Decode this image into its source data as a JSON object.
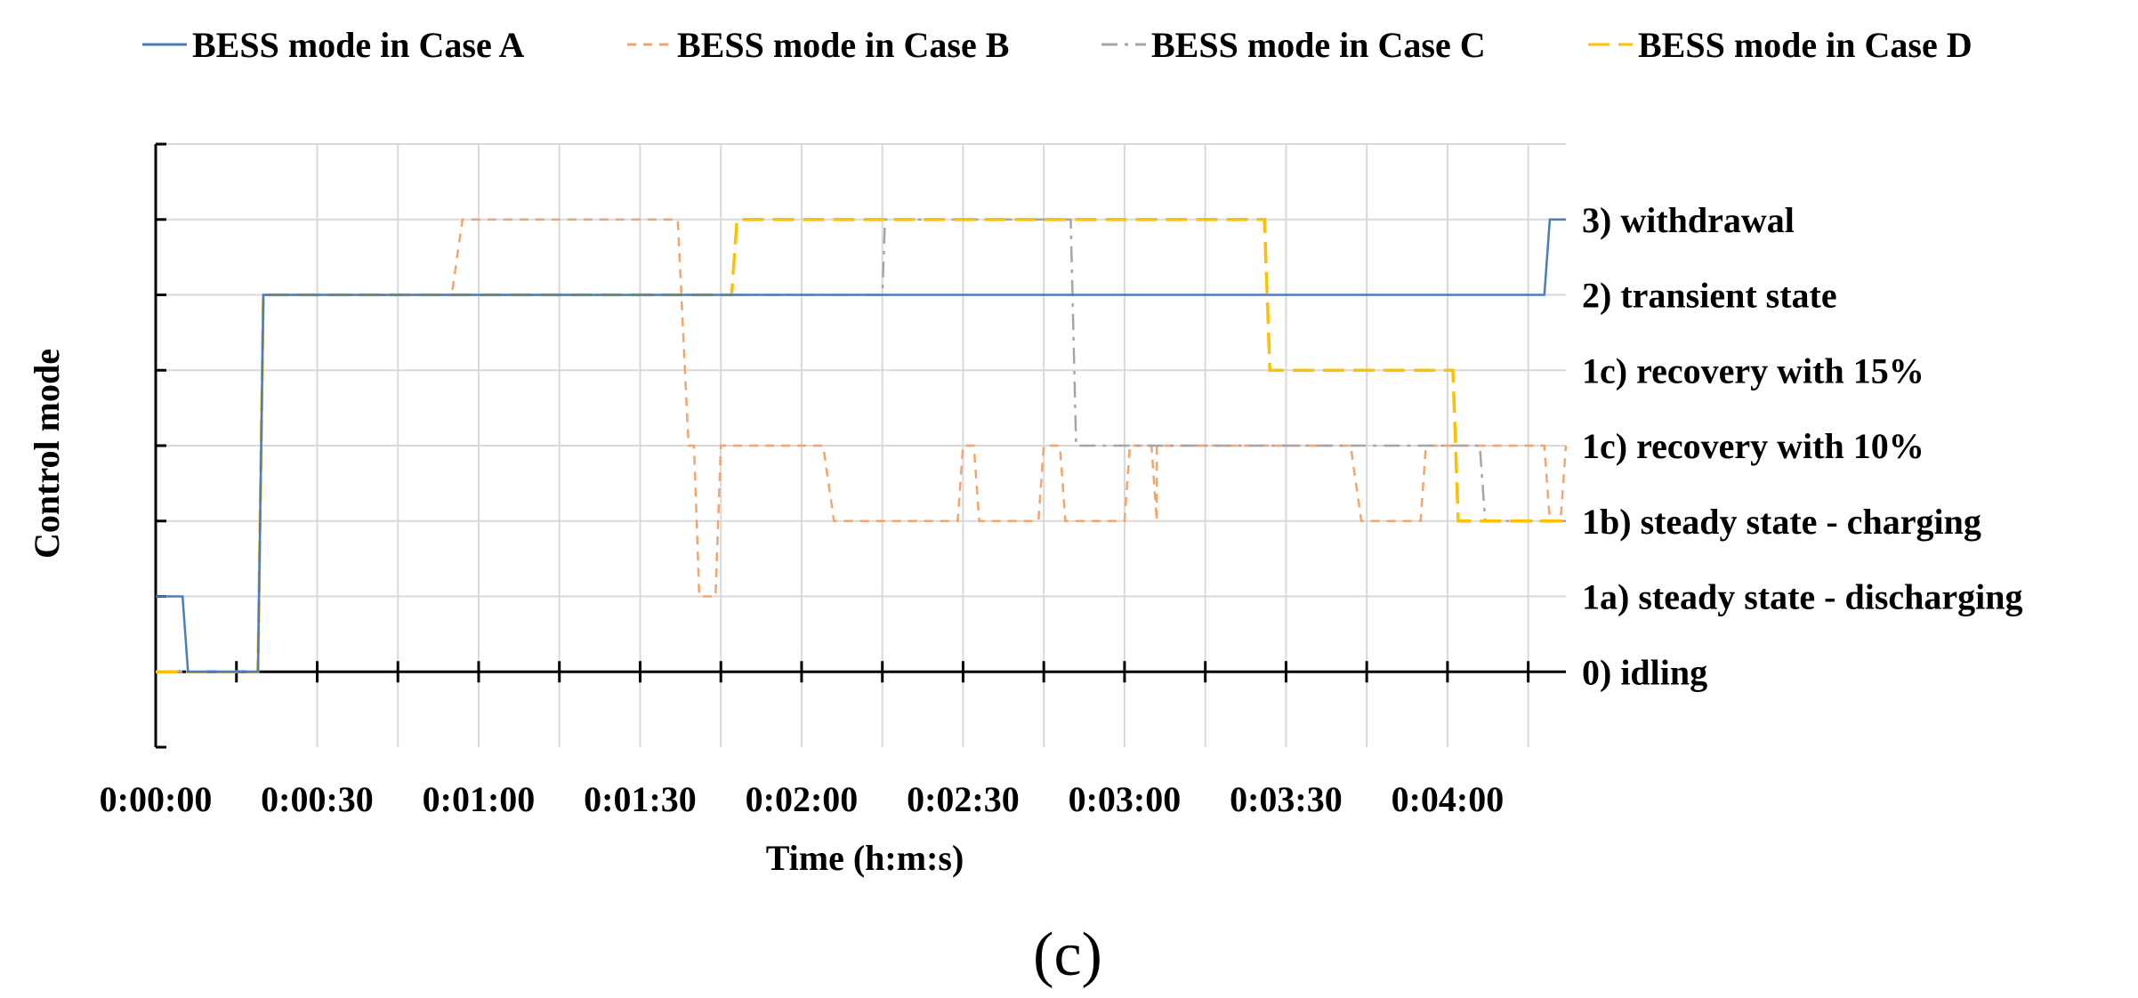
{
  "chart_data": {
    "type": "line",
    "caption": "(c)",
    "xlabel": "Time (h:m:s)",
    "ylabel": "Control mode",
    "x_ticks": [
      "0:00:00",
      "0:00:30",
      "0:01:00",
      "0:01:30",
      "0:02:00",
      "0:02:30",
      "0:03:00",
      "0:03:30",
      "0:04:00"
    ],
    "x_range_seconds": [
      0,
      262
    ],
    "y_range": [
      -1,
      7
    ],
    "y_levels": [
      {
        "value": 0,
        "label": "0) idling"
      },
      {
        "value": 1,
        "label": "1a) steady state - discharging"
      },
      {
        "value": 2,
        "label": "1b) steady state - charging"
      },
      {
        "value": 3,
        "label": "1c) recovery with 10%"
      },
      {
        "value": 4,
        "label": "1c) recovery with 15%"
      },
      {
        "value": 5,
        "label": "2) transient state"
      },
      {
        "value": 6,
        "label": "3) withdrawal"
      }
    ],
    "grid": true,
    "legend_position": "top",
    "series": [
      {
        "name": "BESS mode in Case A",
        "color": "#4a7ebb",
        "dash": "solid",
        "points": [
          [
            0,
            1
          ],
          [
            5,
            1
          ],
          [
            6,
            0
          ],
          [
            19,
            0
          ],
          [
            20,
            5
          ],
          [
            258,
            5
          ],
          [
            259,
            6
          ],
          [
            262,
            6
          ]
        ]
      },
      {
        "name": "BESS mode in Case B",
        "color": "#f4a46b",
        "dash": "short-dash",
        "points": [
          [
            0,
            0
          ],
          [
            19,
            0
          ],
          [
            20,
            5
          ],
          [
            55,
            5
          ],
          [
            57,
            6
          ],
          [
            97,
            6
          ],
          [
            99,
            3
          ],
          [
            100,
            3
          ],
          [
            101,
            1
          ],
          [
            104,
            1
          ],
          [
            105,
            3
          ],
          [
            124,
            3
          ],
          [
            126,
            2
          ],
          [
            149,
            2
          ],
          [
            150,
            3
          ],
          [
            152,
            3
          ],
          [
            153,
            2
          ],
          [
            164,
            2
          ],
          [
            165,
            3
          ],
          [
            168,
            3
          ],
          [
            169,
            2
          ],
          [
            180,
            2
          ],
          [
            181,
            3
          ],
          [
            185,
            3
          ],
          [
            186,
            2
          ],
          [
            186,
            3
          ],
          [
            222,
            3
          ],
          [
            224,
            2
          ],
          [
            235,
            2
          ],
          [
            236,
            3
          ],
          [
            258,
            3
          ],
          [
            259,
            2
          ],
          [
            261,
            2
          ],
          [
            262,
            3
          ]
        ]
      },
      {
        "name": "BESS mode in Case C",
        "color": "#a5a5a5",
        "dash": "dash-dot",
        "points": [
          [
            0,
            0
          ],
          [
            19,
            0
          ],
          [
            20,
            5
          ],
          [
            135,
            5
          ],
          [
            135.5,
            6
          ],
          [
            170,
            6
          ],
          [
            171,
            3
          ],
          [
            246,
            3
          ],
          [
            247,
            2
          ],
          [
            262,
            2
          ]
        ]
      },
      {
        "name": "BESS mode in Case D",
        "color": "#ffc000",
        "dash": "long-dash",
        "points": [
          [
            0,
            0
          ],
          [
            19,
            0
          ],
          [
            20,
            5
          ],
          [
            107,
            5
          ],
          [
            108,
            6
          ],
          [
            206,
            6
          ],
          [
            207,
            4
          ],
          [
            241,
            4
          ],
          [
            242,
            2
          ],
          [
            262,
            2
          ]
        ]
      }
    ]
  }
}
